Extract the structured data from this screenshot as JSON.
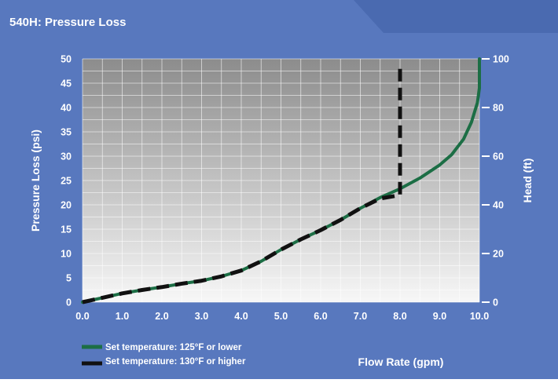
{
  "colors": {
    "panel": "#5878BE",
    "tab": "#4A6AB0",
    "green": "#1C6E45",
    "black": "#111111",
    "text": "#FFFFFF"
  },
  "chart_data": {
    "type": "line",
    "title": "540H: Pressure Loss",
    "xlabel": "Flow Rate (gpm)",
    "ylabel": "Pressure Loss (psi)",
    "y2label": "Head (ft)",
    "xlim": [
      0,
      10
    ],
    "ylim": [
      0,
      50
    ],
    "y2lim": [
      0,
      100
    ],
    "x_ticks": [
      "0.0",
      "1.0",
      "2.0",
      "3.0",
      "4.0",
      "5.0",
      "6.0",
      "7.0",
      "8.0",
      "9.0",
      "10.0"
    ],
    "y_ticks": [
      "0",
      "5",
      "10",
      "15",
      "20",
      "25",
      "30",
      "35",
      "40",
      "45",
      "50"
    ],
    "y2_ticks": [
      "0",
      "20",
      "40",
      "60",
      "80",
      "100"
    ],
    "grid": true,
    "legend_position": "bottom-left",
    "series": [
      {
        "name": "Set temperature: 125°F or lower",
        "style": "solid",
        "color": "#1C6E45",
        "x": [
          0,
          0.5,
          1,
          1.5,
          2,
          2.5,
          3,
          3.5,
          4,
          4.5,
          5,
          5.5,
          6,
          6.5,
          7,
          7.5,
          8,
          8.5,
          9,
          9.3,
          9.6,
          9.8,
          9.95,
          10,
          10,
          10
        ],
        "y": [
          0,
          0.9,
          1.8,
          2.5,
          3.1,
          3.8,
          4.4,
          5.3,
          6.5,
          8.4,
          10.8,
          12.9,
          14.8,
          16.9,
          19.3,
          21.5,
          23.3,
          25.5,
          28.2,
          30.3,
          33.5,
          37,
          41,
          44,
          47,
          50
        ]
      },
      {
        "name": "Set temperature: 130°F or higher",
        "style": "dashed",
        "color": "#111111",
        "x": [
          0,
          0.5,
          1,
          1.5,
          2,
          2.5,
          3,
          3.5,
          4,
          4.5,
          5,
          5.5,
          6,
          6.5,
          7,
          7.5,
          8,
          8,
          8
        ],
        "y": [
          0,
          0.9,
          1.8,
          2.5,
          3.1,
          3.8,
          4.4,
          5.3,
          6.5,
          8.4,
          10.8,
          12.9,
          14.8,
          16.9,
          19.3,
          21.3,
          22.0,
          35,
          48
        ]
      }
    ]
  }
}
